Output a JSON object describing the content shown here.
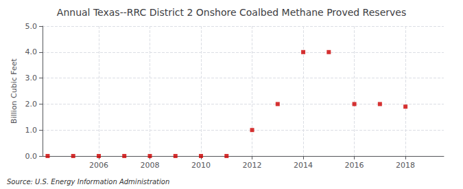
{
  "chart_data": {
    "type": "scatter",
    "title": "Annual Texas--RRC District 2 Onshore Coalbed Methane Proved Reserves",
    "ylabel": "Billion Cubic Feet",
    "annotation": "Source: U.S. Energy Information Administration",
    "x": [
      2004,
      2005,
      2006,
      2007,
      2008,
      2009,
      2010,
      2011,
      2012,
      2013,
      2014,
      2015,
      2016,
      2017,
      2018
    ],
    "values": [
      0.0,
      0.0,
      0.0,
      0.0,
      0.0,
      0.0,
      0.0,
      0.0,
      1.0,
      2.0,
      4.0,
      4.0,
      2.0,
      2.0,
      1.9
    ],
    "color": "#cc0000",
    "marker": "square",
    "xlim": [
      2003.8,
      2019.5
    ],
    "xticks": [
      2006,
      2008,
      2010,
      2012,
      2014,
      2016,
      2018
    ],
    "ylim": [
      0.0,
      5.0
    ],
    "yticks": [
      {
        "value": 0.0,
        "label": "0.0"
      },
      {
        "value": 1.0,
        "label": "1.0"
      },
      {
        "value": 2.0,
        "label": "2.0"
      },
      {
        "value": 3.0,
        "label": "3.0"
      },
      {
        "value": 4.0,
        "label": "4.0"
      },
      {
        "value": 5.0,
        "label": "5.0"
      }
    ],
    "grid": true
  }
}
